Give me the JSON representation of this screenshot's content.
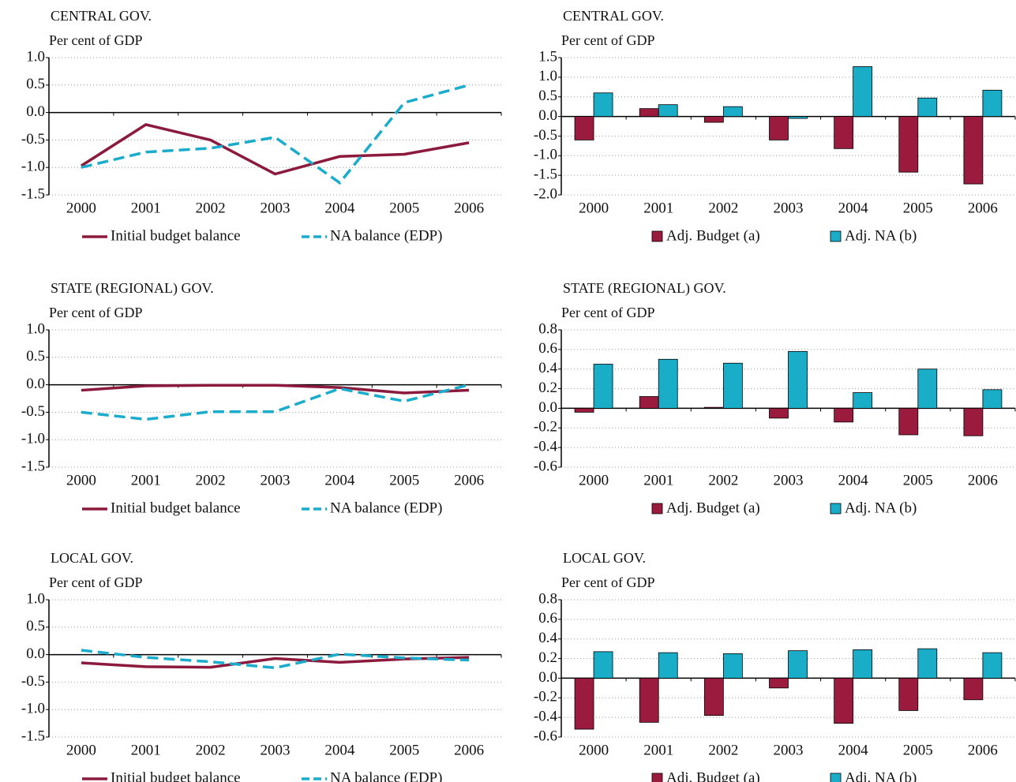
{
  "chart_data": [
    {
      "type": "line",
      "title": "CENTRAL GOV.",
      "subtitle": "Per cent of GDP",
      "categories": [
        "2000",
        "2001",
        "2002",
        "2003",
        "2004",
        "2005",
        "2006"
      ],
      "series": [
        {
          "name": "Initial budget balance",
          "color": "#8b1a3c",
          "line_style": "solid",
          "values": [
            -0.97,
            -0.22,
            -0.5,
            -1.12,
            -0.8,
            -0.76,
            -0.55
          ]
        },
        {
          "name": "NA balance (EDP)",
          "color": "#1aaccc",
          "line_style": "dashed",
          "values": [
            -1.0,
            -0.72,
            -0.65,
            -0.45,
            -1.28,
            0.18,
            0.5
          ]
        }
      ],
      "ylim": [
        -1.5,
        1.0
      ],
      "yticks": [
        {
          "value": -1.5,
          "label": "-1.5"
        },
        {
          "value": -1,
          "label": "-1.0"
        },
        -0.5,
        {
          "value": 0,
          "label": "0.0"
        },
        0.5,
        {
          "value": 1,
          "label": "1.0"
        }
      ],
      "grid": true
    },
    {
      "type": "bar",
      "title": "CENTRAL GOV.",
      "subtitle": "Per cent of GDP",
      "categories": [
        "2000",
        "2001",
        "2002",
        "2003",
        "2004",
        "2005",
        "2006"
      ],
      "series": [
        {
          "name": "Adj. Budget (a)",
          "color": "#9b1b3e",
          "values": [
            -0.6,
            0.2,
            -0.15,
            -0.6,
            -0.82,
            -1.42,
            -1.72
          ]
        },
        {
          "name": "Adj. NA (b)",
          "color": "#19adc8",
          "values": [
            0.6,
            0.3,
            0.25,
            -0.05,
            1.27,
            0.47,
            0.67
          ]
        }
      ],
      "ylim": [
        -2.0,
        1.5
      ],
      "yticks": [
        {
          "value": -2,
          "label": "-2.0"
        },
        -1.5,
        {
          "value": -1,
          "label": "-1.0"
        },
        -0.5,
        {
          "value": 0,
          "label": "0.0"
        },
        0.5,
        {
          "value": 1,
          "label": "1.0"
        },
        1.5
      ],
      "grid": true
    },
    {
      "type": "line",
      "title": "STATE (REGIONAL) GOV.",
      "subtitle": "Per cent of GDP",
      "categories": [
        "2000",
        "2001",
        "2002",
        "2003",
        "2004",
        "2005",
        "2006"
      ],
      "series": [
        {
          "name": "Initial budget balance",
          "color": "#8b1a3c",
          "line_style": "solid",
          "values": [
            -0.1,
            -0.02,
            -0.01,
            -0.01,
            -0.05,
            -0.15,
            -0.1
          ]
        },
        {
          "name": "NA balance (EDP)",
          "color": "#1aaccc",
          "line_style": "dashed",
          "values": [
            -0.5,
            -0.63,
            -0.49,
            -0.49,
            -0.07,
            -0.3,
            0.0
          ]
        }
      ],
      "ylim": [
        -1.5,
        1.0
      ],
      "yticks": [
        {
          "value": -1.5,
          "label": "-1.5"
        },
        {
          "value": -1,
          "label": "-1.0"
        },
        -0.5,
        {
          "value": 0,
          "label": "0.0"
        },
        0.5,
        {
          "value": 1,
          "label": "1.0"
        }
      ],
      "grid": true
    },
    {
      "type": "bar",
      "title": "STATE (REGIONAL) GOV.",
      "subtitle": "Per cent of GDP",
      "categories": [
        "2000",
        "2001",
        "2002",
        "2003",
        "2004",
        "2005",
        "2006"
      ],
      "series": [
        {
          "name": "Adj. Budget (a)",
          "color": "#9b1b3e",
          "values": [
            -0.04,
            0.12,
            0.01,
            -0.1,
            -0.14,
            -0.27,
            -0.28
          ]
        },
        {
          "name": "Adj. NA (b)",
          "color": "#19adc8",
          "values": [
            0.45,
            0.5,
            0.46,
            0.58,
            0.16,
            0.4,
            0.19
          ]
        }
      ],
      "ylim": [
        -0.6,
        0.8
      ],
      "yticks": [
        -0.6,
        -0.4,
        -0.2,
        {
          "value": 0,
          "label": "0.0"
        },
        0.2,
        0.4,
        0.6,
        0.8
      ],
      "grid": true
    },
    {
      "type": "line",
      "title": "LOCAL GOV.",
      "subtitle": "Per cent of GDP",
      "categories": [
        "2000",
        "2001",
        "2002",
        "2003",
        "2004",
        "2005",
        "2006"
      ],
      "series": [
        {
          "name": "Initial budget balance",
          "color": "#8b1a3c",
          "line_style": "solid",
          "values": [
            -0.15,
            -0.22,
            -0.23,
            -0.07,
            -0.14,
            -0.08,
            -0.05
          ]
        },
        {
          "name": "NA balance (EDP)",
          "color": "#1aaccc",
          "line_style": "dashed",
          "values": [
            0.08,
            -0.05,
            -0.13,
            -0.24,
            0.01,
            -0.06,
            -0.1
          ]
        }
      ],
      "ylim": [
        -1.5,
        1.0
      ],
      "yticks": [
        {
          "value": -1.5,
          "label": "-1.5"
        },
        {
          "value": -1,
          "label": "-1.0"
        },
        -0.5,
        {
          "value": 0,
          "label": "0.0"
        },
        0.5,
        {
          "value": 1,
          "label": "1.0"
        }
      ],
      "grid": true
    },
    {
      "type": "bar",
      "title": "LOCAL GOV.",
      "subtitle": "Per cent of GDP",
      "categories": [
        "2000",
        "2001",
        "2002",
        "2003",
        "2004",
        "2005",
        "2006"
      ],
      "series": [
        {
          "name": "Adj. Budget (a)",
          "color": "#9b1b3e",
          "values": [
            -0.52,
            -0.45,
            -0.38,
            -0.1,
            -0.46,
            -0.33,
            -0.22
          ]
        },
        {
          "name": "Adj. NA (b)",
          "color": "#19adc8",
          "values": [
            0.27,
            0.26,
            0.25,
            0.28,
            0.29,
            0.3,
            0.26
          ]
        }
      ],
      "ylim": [
        -0.6,
        0.8
      ],
      "yticks": [
        -0.6,
        -0.4,
        -0.2,
        {
          "value": 0,
          "label": "0.0"
        },
        0.2,
        0.4,
        0.6,
        0.8
      ],
      "grid": true
    }
  ]
}
